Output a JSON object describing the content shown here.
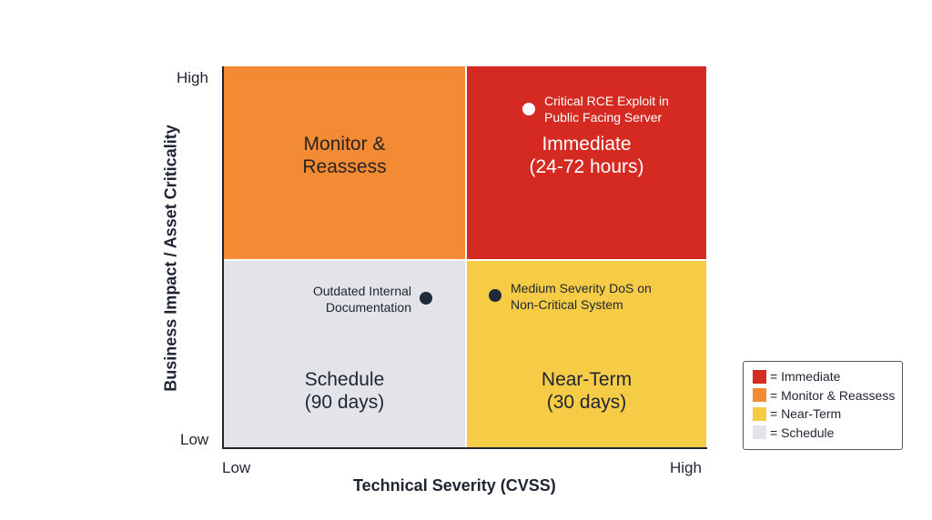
{
  "axes": {
    "x_label": "Technical Severity (CVSS)",
    "y_label": "Business Impact / Asset Criticality",
    "x_low": "Low",
    "x_high": "High",
    "y_low": "Low",
    "y_high": "High"
  },
  "quadrants": {
    "top_left": {
      "label": "Monitor &\nReassess",
      "color": "#F38B35"
    },
    "top_right": {
      "label": "Immediate\n(24-72 hours)",
      "color": "#D42A22"
    },
    "bottom_left": {
      "label": "Schedule\n(90 days)",
      "color": "#E3E4E9"
    },
    "bottom_right": {
      "label": "Near-Term\n(30 days)",
      "color": "#F6CC47"
    }
  },
  "points": [
    {
      "label": "Critical RCE Exploit in\nPublic Facing Server",
      "quadrant": "Immediate"
    },
    {
      "label": "Outdated Internal\nDocumentation",
      "quadrant": "Schedule"
    },
    {
      "label": "Medium Severity DoS on\nNon-Critical System",
      "quadrant": "Near-Term"
    }
  ],
  "legend": [
    {
      "label": "= Immediate",
      "color": "#D42A22"
    },
    {
      "label": "= Monitor & Reassess",
      "color": "#F38B35"
    },
    {
      "label": "= Near-Term",
      "color": "#F6CC47"
    },
    {
      "label": "= Schedule",
      "color": "#E3E4E9"
    }
  ]
}
